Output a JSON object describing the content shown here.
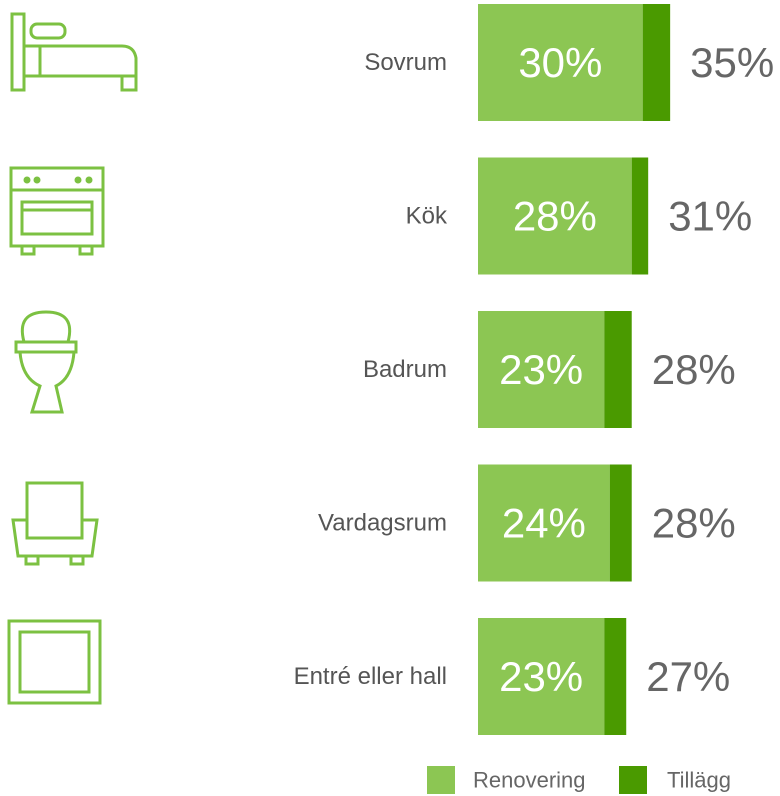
{
  "chart_data": {
    "type": "stacked-bar",
    "categories": [
      "Sovrum",
      "Kök",
      "Badrum",
      "Vardagsrum",
      "Entré eller hall"
    ],
    "series": [
      {
        "name": "Renovering",
        "color": "#8cc653",
        "values": [
          30,
          28,
          23,
          24,
          23
        ],
        "value_labels": [
          "30%",
          "28%",
          "23%",
          "24%",
          "23%"
        ]
      },
      {
        "name": "Tillägg",
        "color": "#4a9a00",
        "values": [
          5,
          3,
          5,
          4,
          4
        ]
      }
    ],
    "totals": [
      35,
      31,
      28,
      28,
      27
    ],
    "total_labels": [
      "35%",
      "31%",
      "28%",
      "28%",
      "27%"
    ]
  }
}
